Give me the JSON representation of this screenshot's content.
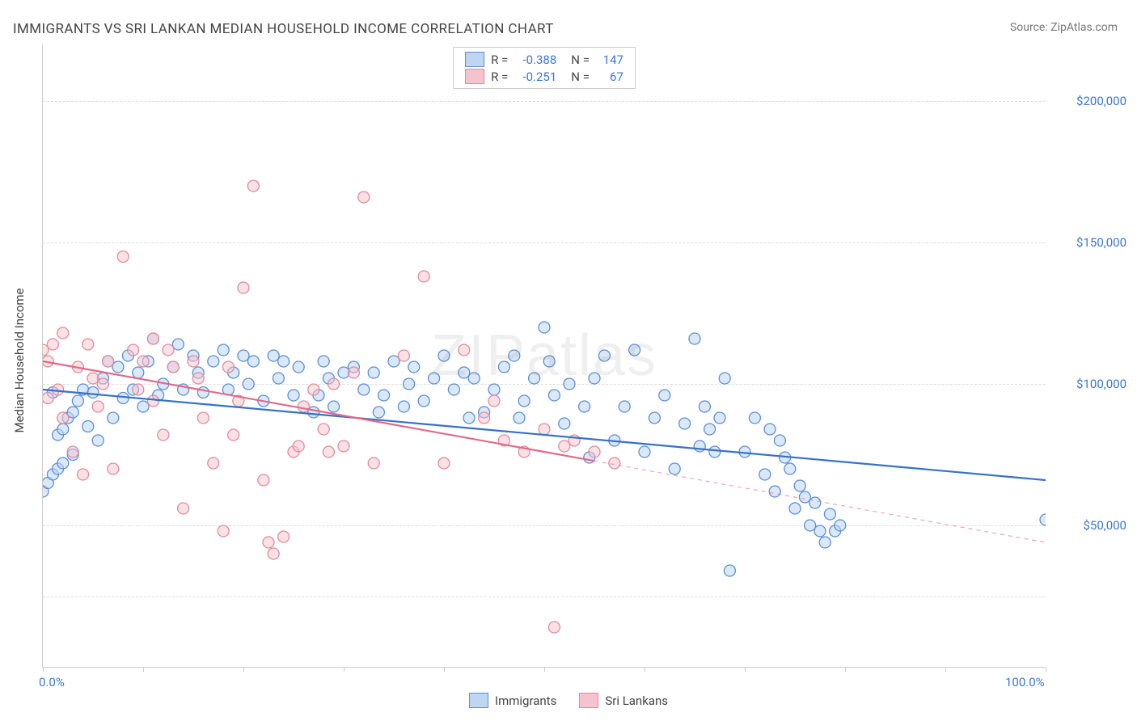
{
  "title": "IMMIGRANTS VS SRI LANKAN MEDIAN HOUSEHOLD INCOME CORRELATION CHART",
  "source": "Source: ZipAtlas.com",
  "watermark": "ZIPatlas",
  "ylabel": "Median Household Income",
  "chart": {
    "type": "scatter",
    "background_color": "#ffffff",
    "grid_color": "#dddddd",
    "axis_color": "#cccccc",
    "ylim": [
      0,
      220000
    ],
    "xlim": [
      0,
      100
    ],
    "yticks": [
      50000,
      100000,
      150000,
      200000
    ],
    "ytick_labels": [
      "$50,000",
      "$100,000",
      "$150,000",
      "$200,000"
    ],
    "ytick_at_25": true,
    "xtick_positions": [
      0,
      10,
      20,
      30,
      40,
      50,
      60,
      70,
      80,
      90,
      100
    ],
    "xtick_labels": {
      "0": "0.0%",
      "100": "100.0%"
    },
    "label_color": "#3a77d6",
    "text_color": "#444444",
    "title_fontsize": 17,
    "label_fontsize": 15,
    "marker_radius": 7,
    "marker_stroke_width": 1.3,
    "line_width": 2.2
  },
  "series": [
    {
      "name": "Immigrants",
      "fill": "#bed6f2",
      "stroke": "#5b8fd6",
      "fill_opacity": 0.55,
      "R": "-0.388",
      "N": "147",
      "regression": {
        "x1": 0,
        "y1": 98000,
        "x2": 100,
        "y2": 66000,
        "dash_from_x": null,
        "color": "#3672c6"
      },
      "points": [
        [
          0,
          62000
        ],
        [
          0.5,
          65000
        ],
        [
          1,
          68000
        ],
        [
          1.5,
          70000
        ],
        [
          2,
          72000
        ],
        [
          1,
          97000
        ],
        [
          1.5,
          82000
        ],
        [
          2,
          84000
        ],
        [
          2.5,
          88000
        ],
        [
          3,
          75000
        ],
        [
          3,
          90000
        ],
        [
          3.5,
          94000
        ],
        [
          4,
          98000
        ],
        [
          4.5,
          85000
        ],
        [
          5,
          97000
        ],
        [
          5.5,
          80000
        ],
        [
          6,
          102000
        ],
        [
          6.5,
          108000
        ],
        [
          7,
          88000
        ],
        [
          7.5,
          106000
        ],
        [
          8,
          95000
        ],
        [
          8.5,
          110000
        ],
        [
          9,
          98000
        ],
        [
          9.5,
          104000
        ],
        [
          10,
          92000
        ],
        [
          10.5,
          108000
        ],
        [
          11,
          116000
        ],
        [
          11.5,
          96000
        ],
        [
          12,
          100000
        ],
        [
          13,
          106000
        ],
        [
          13.5,
          114000
        ],
        [
          14,
          98000
        ],
        [
          15,
          110000
        ],
        [
          15.5,
          104000
        ],
        [
          16,
          97000
        ],
        [
          17,
          108000
        ],
        [
          18,
          112000
        ],
        [
          18.5,
          98000
        ],
        [
          19,
          104000
        ],
        [
          20,
          110000
        ],
        [
          20.5,
          100000
        ],
        [
          21,
          108000
        ],
        [
          22,
          94000
        ],
        [
          23,
          110000
        ],
        [
          23.5,
          102000
        ],
        [
          24,
          108000
        ],
        [
          25,
          96000
        ],
        [
          25.5,
          106000
        ],
        [
          27,
          90000
        ],
        [
          27.5,
          96000
        ],
        [
          28,
          108000
        ],
        [
          28.5,
          102000
        ],
        [
          29,
          92000
        ],
        [
          30,
          104000
        ],
        [
          31,
          106000
        ],
        [
          32,
          98000
        ],
        [
          33,
          104000
        ],
        [
          33.5,
          90000
        ],
        [
          34,
          96000
        ],
        [
          35,
          108000
        ],
        [
          36,
          92000
        ],
        [
          36.5,
          100000
        ],
        [
          37,
          106000
        ],
        [
          38,
          94000
        ],
        [
          39,
          102000
        ],
        [
          40,
          110000
        ],
        [
          41,
          98000
        ],
        [
          42,
          104000
        ],
        [
          42.5,
          88000
        ],
        [
          43,
          102000
        ],
        [
          44,
          90000
        ],
        [
          45,
          98000
        ],
        [
          46,
          106000
        ],
        [
          47,
          110000
        ],
        [
          47.5,
          88000
        ],
        [
          48,
          94000
        ],
        [
          49,
          102000
        ],
        [
          50,
          120000
        ],
        [
          50.5,
          108000
        ],
        [
          51,
          96000
        ],
        [
          52,
          86000
        ],
        [
          52.5,
          100000
        ],
        [
          54,
          92000
        ],
        [
          54.5,
          74000
        ],
        [
          55,
          102000
        ],
        [
          56,
          110000
        ],
        [
          57,
          80000
        ],
        [
          58,
          92000
        ],
        [
          59,
          112000
        ],
        [
          60,
          76000
        ],
        [
          61,
          88000
        ],
        [
          62,
          96000
        ],
        [
          63,
          70000
        ],
        [
          64,
          86000
        ],
        [
          65,
          116000
        ],
        [
          65.5,
          78000
        ],
        [
          66,
          92000
        ],
        [
          66.5,
          84000
        ],
        [
          67,
          76000
        ],
        [
          67.5,
          88000
        ],
        [
          68,
          102000
        ],
        [
          68.5,
          34000
        ],
        [
          70,
          76000
        ],
        [
          71,
          88000
        ],
        [
          72,
          68000
        ],
        [
          72.5,
          84000
        ],
        [
          73,
          62000
        ],
        [
          73.5,
          80000
        ],
        [
          74,
          74000
        ],
        [
          74.5,
          70000
        ],
        [
          75,
          56000
        ],
        [
          75.5,
          64000
        ],
        [
          76,
          60000
        ],
        [
          76.5,
          50000
        ],
        [
          77,
          58000
        ],
        [
          77.5,
          48000
        ],
        [
          78,
          44000
        ],
        [
          78.5,
          54000
        ],
        [
          79,
          48000
        ],
        [
          79.5,
          50000
        ],
        [
          100,
          52000
        ]
      ]
    },
    {
      "name": "Sri Lankans",
      "fill": "#f5c3ce",
      "stroke": "#e08a9e",
      "fill_opacity": 0.5,
      "R": "-0.251",
      "N": "67",
      "regression": {
        "x1": 0,
        "y1": 108000,
        "x2": 100,
        "y2": 44000,
        "dash_from_x": 55,
        "color": "#e06a88"
      },
      "points": [
        [
          0,
          112000
        ],
        [
          0.5,
          108000
        ],
        [
          0.5,
          95000
        ],
        [
          1,
          114000
        ],
        [
          1.5,
          98000
        ],
        [
          2,
          118000
        ],
        [
          2,
          88000
        ],
        [
          3,
          76000
        ],
        [
          3.5,
          106000
        ],
        [
          4,
          68000
        ],
        [
          4.5,
          114000
        ],
        [
          5,
          102000
        ],
        [
          5.5,
          92000
        ],
        [
          6,
          100000
        ],
        [
          6.5,
          108000
        ],
        [
          7,
          70000
        ],
        [
          8,
          145000
        ],
        [
          9,
          112000
        ],
        [
          9.5,
          98000
        ],
        [
          10,
          108000
        ],
        [
          11,
          116000
        ],
        [
          11,
          94000
        ],
        [
          12,
          82000
        ],
        [
          12.5,
          112000
        ],
        [
          13,
          106000
        ],
        [
          14,
          56000
        ],
        [
          15,
          108000
        ],
        [
          15.5,
          102000
        ],
        [
          16,
          88000
        ],
        [
          17,
          72000
        ],
        [
          18,
          48000
        ],
        [
          18.5,
          106000
        ],
        [
          19,
          82000
        ],
        [
          19.5,
          94000
        ],
        [
          20,
          134000
        ],
        [
          21,
          170000
        ],
        [
          22,
          66000
        ],
        [
          22.5,
          44000
        ],
        [
          23,
          40000
        ],
        [
          24,
          46000
        ],
        [
          25,
          76000
        ],
        [
          25.5,
          78000
        ],
        [
          26,
          92000
        ],
        [
          27,
          98000
        ],
        [
          28,
          84000
        ],
        [
          28.5,
          76000
        ],
        [
          29,
          100000
        ],
        [
          30,
          78000
        ],
        [
          31,
          104000
        ],
        [
          32,
          166000
        ],
        [
          33,
          72000
        ],
        [
          36,
          110000
        ],
        [
          38,
          138000
        ],
        [
          40,
          72000
        ],
        [
          42,
          112000
        ],
        [
          44,
          88000
        ],
        [
          45,
          94000
        ],
        [
          46,
          80000
        ],
        [
          48,
          76000
        ],
        [
          50,
          84000
        ],
        [
          51,
          14000
        ],
        [
          52,
          78000
        ],
        [
          53,
          80000
        ],
        [
          55,
          76000
        ],
        [
          57,
          72000
        ]
      ]
    }
  ],
  "bottom_legend": [
    {
      "label": "Immigrants",
      "fill": "#bed6f2",
      "stroke": "#5b8fd6"
    },
    {
      "label": "Sri Lankans",
      "fill": "#f5c3ce",
      "stroke": "#e08a9e"
    }
  ]
}
